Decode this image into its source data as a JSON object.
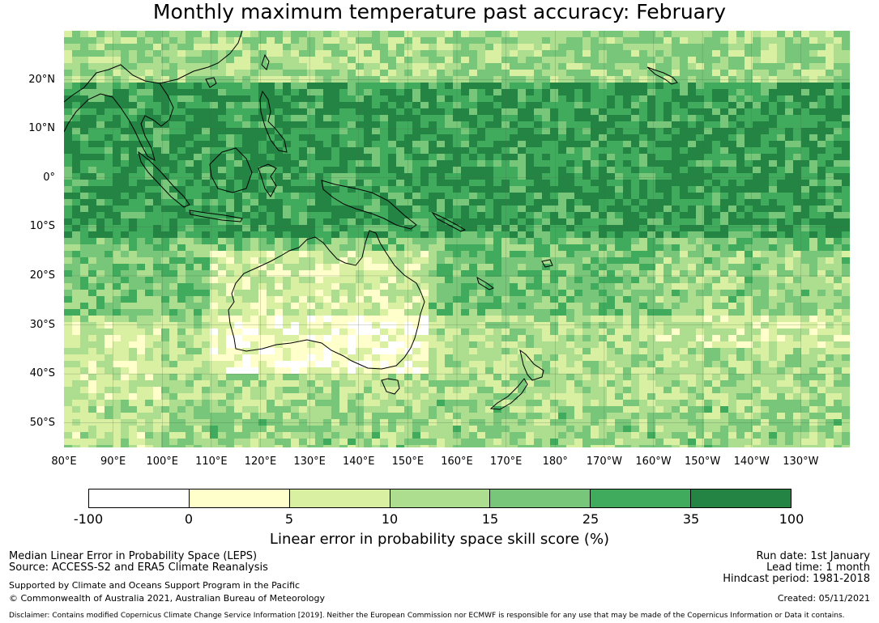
{
  "title": "Monthly maximum temperature past accuracy: February",
  "map": {
    "lat_ticks": [
      "20°N",
      "10°N",
      "0°",
      "10°S",
      "20°S",
      "30°S",
      "40°S",
      "50°S"
    ],
    "lon_ticks": [
      "80°E",
      "90°E",
      "100°E",
      "110°E",
      "120°E",
      "130°E",
      "140°E",
      "150°E",
      "160°E",
      "170°E",
      "180°",
      "170°W",
      "160°W",
      "150°W",
      "140°W",
      "130°W"
    ],
    "lat_range": [
      -55,
      30
    ],
    "lon_range": [
      80,
      240
    ]
  },
  "colorbar": {
    "ticks": [
      "-100",
      "0",
      "5",
      "10",
      "15",
      "25",
      "35",
      "100"
    ],
    "colors": [
      "#ffffff",
      "#ffffcc",
      "#d9f0a3",
      "#addd8e",
      "#78c679",
      "#41ab5d",
      "#238443"
    ],
    "label": "Linear error in probability space skill score (%)"
  },
  "footer": {
    "left_line1": "Median Linear Error in Probability Space (LEPS)",
    "left_line2": "Source: ACCESS-S2 and ERA5 Climate Reanalysis",
    "support": "Supported by Climate and Oceans Support Program in the Pacific",
    "copyright": "© Commonwealth of Australia 2021, Australian Bureau of Meteorology",
    "run_date": "Run date: 1st January",
    "lead_time": "Lead time: 1 month",
    "hindcast": "Hindcast period: 1981-2018",
    "created": "Created: 05/11/2021",
    "disclaimer": "Disclaimer: Contains modified Copernicus Climate Change Service Information [2019]. Neither the European Commission nor ECMWF is responsible for any use that may be made of the Copernicus Information or Data it contains."
  }
}
